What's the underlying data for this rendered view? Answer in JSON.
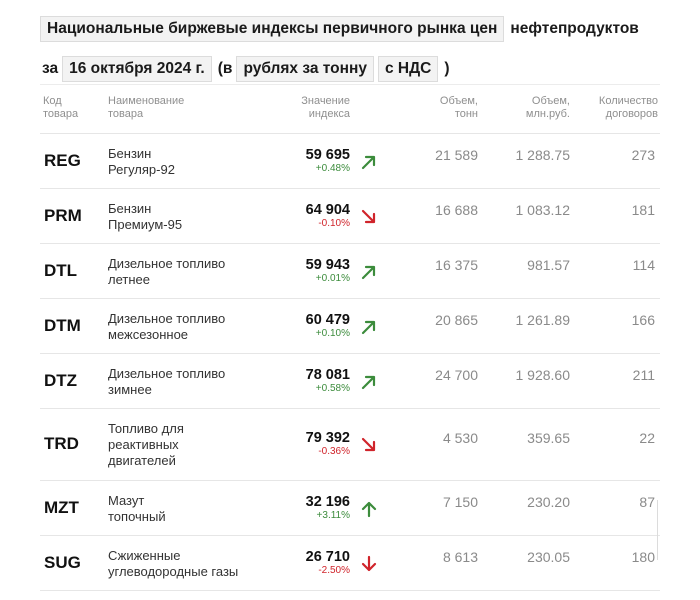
{
  "header": {
    "line1_box": "Национальные биржевые индексы первичного рынка цен",
    "line1_text": "нефтепродуктов",
    "line2_prefix": "за",
    "date": "16 октября 2024 г.",
    "paren_open": "(в",
    "unit": "рублях за тонну",
    "vat": "с НДС",
    "paren_close": ")"
  },
  "columns": {
    "code": [
      "Код",
      "товара"
    ],
    "name": [
      "Наименование",
      "товара"
    ],
    "index": [
      "Значение",
      "индекса"
    ],
    "volume_t": [
      "Объем,",
      "тонн"
    ],
    "volume_rub": [
      "Объем,",
      "млн.руб."
    ],
    "contracts": [
      "Количество",
      "договоров"
    ]
  },
  "rows": [
    {
      "code": "REG",
      "name": [
        "Бензин",
        "Регуляр-92"
      ],
      "value": "59 695",
      "change": "+0.48%",
      "dir": "up-diag",
      "volume_t": "21 589",
      "volume_rub": "1 288.75",
      "contracts": "273"
    },
    {
      "code": "PRM",
      "name": [
        "Бензин",
        "Премиум-95"
      ],
      "value": "64 904",
      "change": "-0.10%",
      "dir": "down-diag",
      "volume_t": "16 688",
      "volume_rub": "1 083.12",
      "contracts": "181"
    },
    {
      "code": "DTL",
      "name": [
        "Дизельное топливо",
        "летнее"
      ],
      "value": "59 943",
      "change": "+0.01%",
      "dir": "up-diag",
      "volume_t": "16 375",
      "volume_rub": "981.57",
      "contracts": "114"
    },
    {
      "code": "DTM",
      "name": [
        "Дизельное топливо",
        "межсезонное"
      ],
      "value": "60 479",
      "change": "+0.10%",
      "dir": "up-diag",
      "volume_t": "20 865",
      "volume_rub": "1 261.89",
      "contracts": "166"
    },
    {
      "code": "DTZ",
      "name": [
        "Дизельное топливо",
        "зимнее"
      ],
      "value": "78 081",
      "change": "+0.58%",
      "dir": "up-diag",
      "volume_t": "24 700",
      "volume_rub": "1 928.60",
      "contracts": "211"
    },
    {
      "code": "TRD",
      "name": [
        "Топливо для",
        "реактивных",
        "двигателей"
      ],
      "value": "79 392",
      "change": "-0.36%",
      "dir": "down-diag",
      "volume_t": "4 530",
      "volume_rub": "359.65",
      "contracts": "22"
    },
    {
      "code": "MZT",
      "name": [
        "Мазут",
        "топочный"
      ],
      "value": "32 196",
      "change": "+3.11%",
      "dir": "up",
      "volume_t": "7 150",
      "volume_rub": "230.20",
      "contracts": "87"
    },
    {
      "code": "SUG",
      "name": [
        "Сжиженные",
        "углеводородные газы"
      ],
      "value": "26 710",
      "change": "-2.50%",
      "dir": "down",
      "volume_t": "8 613",
      "volume_rub": "230.05",
      "contracts": "180"
    }
  ],
  "colors": {
    "up": "#3c8c3c",
    "down": "#d0242b"
  }
}
